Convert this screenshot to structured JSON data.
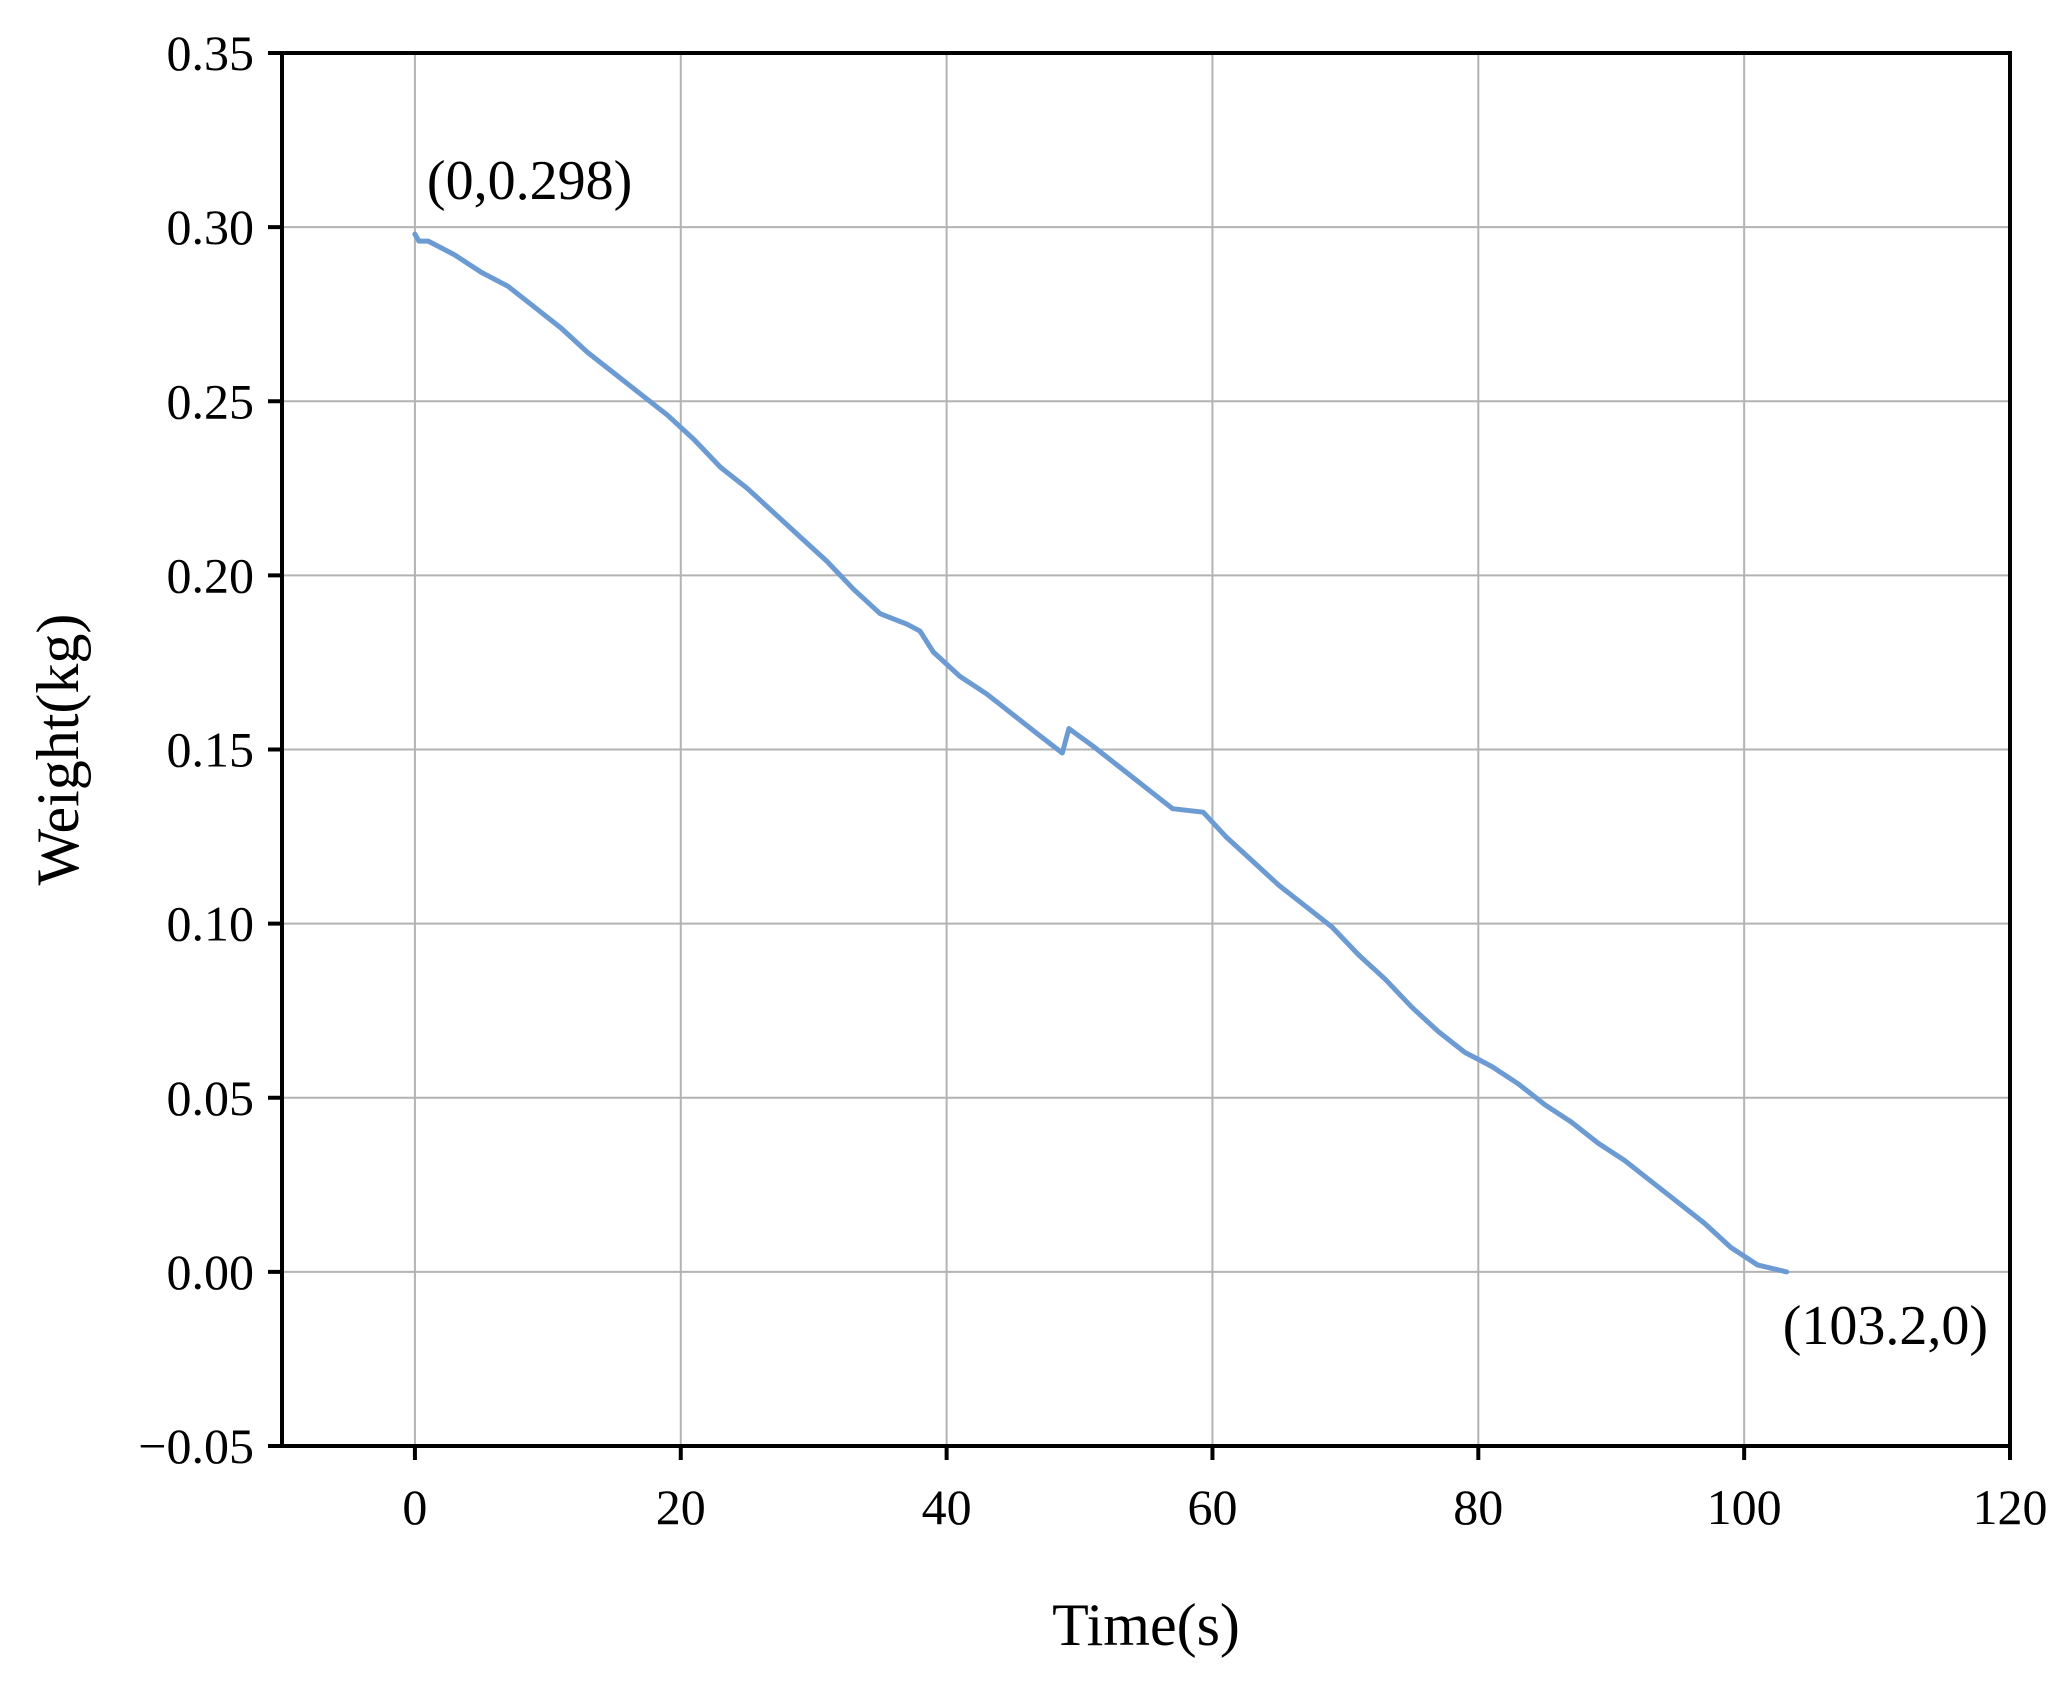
{
  "chart_data": {
    "type": "line",
    "title": "",
    "xlabel": "Time(s)",
    "ylabel": "Weight(kg)",
    "xlim": [
      -10,
      120
    ],
    "ylim": [
      -0.05,
      0.35
    ],
    "grid": true,
    "x_ticks": [
      0,
      20,
      40,
      60,
      80,
      100,
      120
    ],
    "y_ticks": [
      -0.05,
      0.0,
      0.05,
      0.1,
      0.15,
      0.2,
      0.25,
      0.3,
      0.35
    ],
    "x_tick_labels": [
      "0",
      "20",
      "40",
      "60",
      "80",
      "100",
      "120"
    ],
    "y_tick_labels": [
      "−0.05",
      "0.00",
      "0.05",
      "0.10",
      "0.15",
      "0.20",
      "0.25",
      "0.30",
      "0.35"
    ],
    "line_color": "#6b9bd2",
    "series": [
      {
        "x": [
          0,
          0.3,
          1,
          2,
          3,
          5,
          7,
          9,
          11,
          13,
          15,
          17,
          19,
          21,
          23,
          25,
          27,
          29,
          31,
          33,
          35,
          37,
          38,
          39,
          41,
          43,
          45,
          47,
          48.7,
          49.2,
          51,
          53,
          55,
          57,
          59.3,
          61,
          63,
          65,
          67,
          69,
          71,
          73,
          75,
          77,
          79,
          80,
          81,
          83,
          85,
          87,
          89,
          91,
          93,
          95,
          97,
          99,
          101,
          103.2
        ],
        "y": [
          0.298,
          0.296,
          0.296,
          0.294,
          0.292,
          0.287,
          0.283,
          0.277,
          0.271,
          0.264,
          0.258,
          0.252,
          0.246,
          0.239,
          0.231,
          0.225,
          0.218,
          0.211,
          0.204,
          0.196,
          0.189,
          0.186,
          0.184,
          0.178,
          0.171,
          0.166,
          0.16,
          0.154,
          0.149,
          0.156,
          0.151,
          0.145,
          0.139,
          0.133,
          0.132,
          0.125,
          0.118,
          0.111,
          0.105,
          0.099,
          0.091,
          0.084,
          0.076,
          0.069,
          0.063,
          0.061,
          0.059,
          0.054,
          0.048,
          0.043,
          0.037,
          0.032,
          0.026,
          0.02,
          0.014,
          0.007,
          0.002,
          0.0
        ]
      }
    ],
    "annotations": [
      {
        "text": "(0,0.298)",
        "x": 0,
        "y": 0.298
      },
      {
        "text": "(103.2,0)",
        "x": 103.2,
        "y": 0.0
      }
    ]
  }
}
